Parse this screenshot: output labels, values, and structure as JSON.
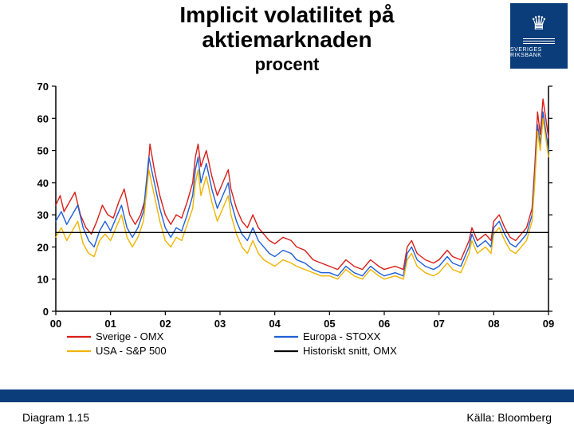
{
  "title": {
    "main": "Implicit volatilitet på\naktiemarknaden",
    "sub": "procent",
    "main_fontsize": 28,
    "sub_fontsize": 22
  },
  "logo": {
    "bg": "#0b3d7a",
    "text": "SVERIGES RIKSBANK"
  },
  "chart": {
    "type": "line",
    "background_color": "#ffffff",
    "ylim": [
      0,
      70
    ],
    "ytick_step": 10,
    "xlim": [
      2000,
      2009
    ],
    "xtick_step": 1,
    "x_labels": [
      "00",
      "01",
      "02",
      "03",
      "04",
      "05",
      "06",
      "07",
      "08",
      "09"
    ],
    "y_labels": [
      "0",
      "10",
      "20",
      "30",
      "40",
      "50",
      "60",
      "70"
    ],
    "axis_color": "#000000",
    "tick_fontsize": 13,
    "line_width": 1.4,
    "grid": false,
    "series": [
      {
        "name": "Sverige - OMX",
        "color": "#d91e18",
        "points": [
          [
            2000.0,
            33
          ],
          [
            2000.08,
            36
          ],
          [
            2000.15,
            31
          ],
          [
            2000.25,
            34
          ],
          [
            2000.35,
            37
          ],
          [
            2000.45,
            30
          ],
          [
            2000.55,
            26
          ],
          [
            2000.65,
            24
          ],
          [
            2000.75,
            28
          ],
          [
            2000.85,
            33
          ],
          [
            2000.95,
            30
          ],
          [
            2001.05,
            29
          ],
          [
            2001.15,
            34
          ],
          [
            2001.25,
            38
          ],
          [
            2001.35,
            30
          ],
          [
            2001.45,
            27
          ],
          [
            2001.55,
            30
          ],
          [
            2001.65,
            36
          ],
          [
            2001.72,
            52
          ],
          [
            2001.8,
            44
          ],
          [
            2001.9,
            36
          ],
          [
            2002.0,
            30
          ],
          [
            2002.1,
            27
          ],
          [
            2002.2,
            30
          ],
          [
            2002.3,
            29
          ],
          [
            2002.4,
            34
          ],
          [
            2002.5,
            40
          ],
          [
            2002.55,
            48
          ],
          [
            2002.6,
            52
          ],
          [
            2002.65,
            45
          ],
          [
            2002.75,
            50
          ],
          [
            2002.85,
            42
          ],
          [
            2002.95,
            36
          ],
          [
            2003.05,
            40
          ],
          [
            2003.15,
            44
          ],
          [
            2003.2,
            38
          ],
          [
            2003.3,
            32
          ],
          [
            2003.4,
            28
          ],
          [
            2003.5,
            26
          ],
          [
            2003.6,
            30
          ],
          [
            2003.7,
            26
          ],
          [
            2003.8,
            24
          ],
          [
            2003.9,
            22
          ],
          [
            2004.0,
            21
          ],
          [
            2004.15,
            23
          ],
          [
            2004.3,
            22
          ],
          [
            2004.4,
            20
          ],
          [
            2004.55,
            19
          ],
          [
            2004.7,
            16
          ],
          [
            2004.85,
            15
          ],
          [
            2005.0,
            14
          ],
          [
            2005.15,
            13
          ],
          [
            2005.3,
            16
          ],
          [
            2005.45,
            14
          ],
          [
            2005.6,
            13
          ],
          [
            2005.75,
            16
          ],
          [
            2005.9,
            14
          ],
          [
            2006.0,
            13
          ],
          [
            2006.2,
            14
          ],
          [
            2006.35,
            13
          ],
          [
            2006.42,
            20
          ],
          [
            2006.5,
            22
          ],
          [
            2006.6,
            18
          ],
          [
            2006.75,
            16
          ],
          [
            2006.9,
            15
          ],
          [
            2007.0,
            16
          ],
          [
            2007.15,
            19
          ],
          [
            2007.25,
            17
          ],
          [
            2007.4,
            16
          ],
          [
            2007.55,
            22
          ],
          [
            2007.6,
            26
          ],
          [
            2007.7,
            22
          ],
          [
            2007.85,
            24
          ],
          [
            2007.95,
            22
          ],
          [
            2008.0,
            28
          ],
          [
            2008.1,
            30
          ],
          [
            2008.2,
            26
          ],
          [
            2008.3,
            23
          ],
          [
            2008.4,
            22
          ],
          [
            2008.5,
            24
          ],
          [
            2008.6,
            26
          ],
          [
            2008.7,
            32
          ],
          [
            2008.75,
            45
          ],
          [
            2008.8,
            62
          ],
          [
            2008.85,
            55
          ],
          [
            2008.9,
            66
          ],
          [
            2008.95,
            60
          ],
          [
            2009.0,
            54
          ]
        ]
      },
      {
        "name": "Europa - STOXX",
        "color": "#1f5fd6",
        "points": [
          [
            2000.0,
            28
          ],
          [
            2000.1,
            31
          ],
          [
            2000.2,
            27
          ],
          [
            2000.3,
            30
          ],
          [
            2000.4,
            33
          ],
          [
            2000.5,
            26
          ],
          [
            2000.6,
            22
          ],
          [
            2000.7,
            20
          ],
          [
            2000.8,
            25
          ],
          [
            2000.9,
            28
          ],
          [
            2001.0,
            25
          ],
          [
            2001.1,
            29
          ],
          [
            2001.2,
            33
          ],
          [
            2001.3,
            26
          ],
          [
            2001.4,
            23
          ],
          [
            2001.5,
            26
          ],
          [
            2001.6,
            31
          ],
          [
            2001.7,
            48
          ],
          [
            2001.8,
            40
          ],
          [
            2001.9,
            32
          ],
          [
            2002.0,
            26
          ],
          [
            2002.1,
            23
          ],
          [
            2002.2,
            26
          ],
          [
            2002.3,
            25
          ],
          [
            2002.4,
            30
          ],
          [
            2002.5,
            36
          ],
          [
            2002.55,
            44
          ],
          [
            2002.6,
            48
          ],
          [
            2002.65,
            40
          ],
          [
            2002.75,
            46
          ],
          [
            2002.85,
            38
          ],
          [
            2002.95,
            32
          ],
          [
            2003.05,
            36
          ],
          [
            2003.15,
            40
          ],
          [
            2003.2,
            34
          ],
          [
            2003.3,
            28
          ],
          [
            2003.4,
            24
          ],
          [
            2003.5,
            22
          ],
          [
            2003.6,
            26
          ],
          [
            2003.7,
            22
          ],
          [
            2003.8,
            20
          ],
          [
            2003.9,
            18
          ],
          [
            2004.0,
            17
          ],
          [
            2004.15,
            19
          ],
          [
            2004.3,
            18
          ],
          [
            2004.4,
            16
          ],
          [
            2004.55,
            15
          ],
          [
            2004.7,
            13
          ],
          [
            2004.85,
            12
          ],
          [
            2005.0,
            12
          ],
          [
            2005.15,
            11
          ],
          [
            2005.3,
            14
          ],
          [
            2005.45,
            12
          ],
          [
            2005.6,
            11
          ],
          [
            2005.75,
            14
          ],
          [
            2005.9,
            12
          ],
          [
            2006.0,
            11
          ],
          [
            2006.2,
            12
          ],
          [
            2006.35,
            11
          ],
          [
            2006.42,
            18
          ],
          [
            2006.5,
            20
          ],
          [
            2006.6,
            16
          ],
          [
            2006.75,
            14
          ],
          [
            2006.9,
            13
          ],
          [
            2007.0,
            14
          ],
          [
            2007.15,
            17
          ],
          [
            2007.25,
            15
          ],
          [
            2007.4,
            14
          ],
          [
            2007.55,
            20
          ],
          [
            2007.6,
            24
          ],
          [
            2007.7,
            20
          ],
          [
            2007.85,
            22
          ],
          [
            2007.95,
            20
          ],
          [
            2008.0,
            26
          ],
          [
            2008.1,
            28
          ],
          [
            2008.2,
            24
          ],
          [
            2008.3,
            21
          ],
          [
            2008.4,
            20
          ],
          [
            2008.5,
            22
          ],
          [
            2008.6,
            24
          ],
          [
            2008.7,
            30
          ],
          [
            2008.75,
            42
          ],
          [
            2008.8,
            58
          ],
          [
            2008.85,
            52
          ],
          [
            2008.9,
            62
          ],
          [
            2008.95,
            56
          ],
          [
            2009.0,
            50
          ]
        ]
      },
      {
        "name": "USA - S&P 500",
        "color": "#f0b400",
        "points": [
          [
            2000.0,
            23
          ],
          [
            2000.1,
            26
          ],
          [
            2000.2,
            22
          ],
          [
            2000.3,
            25
          ],
          [
            2000.4,
            28
          ],
          [
            2000.5,
            21
          ],
          [
            2000.6,
            18
          ],
          [
            2000.7,
            17
          ],
          [
            2000.8,
            22
          ],
          [
            2000.9,
            24
          ],
          [
            2001.0,
            22
          ],
          [
            2001.1,
            26
          ],
          [
            2001.2,
            30
          ],
          [
            2001.3,
            23
          ],
          [
            2001.4,
            20
          ],
          [
            2001.5,
            23
          ],
          [
            2001.6,
            28
          ],
          [
            2001.7,
            44
          ],
          [
            2001.8,
            36
          ],
          [
            2001.9,
            28
          ],
          [
            2002.0,
            22
          ],
          [
            2002.1,
            20
          ],
          [
            2002.2,
            23
          ],
          [
            2002.3,
            22
          ],
          [
            2002.4,
            27
          ],
          [
            2002.5,
            32
          ],
          [
            2002.55,
            40
          ],
          [
            2002.6,
            44
          ],
          [
            2002.65,
            36
          ],
          [
            2002.75,
            42
          ],
          [
            2002.85,
            34
          ],
          [
            2002.95,
            28
          ],
          [
            2003.05,
            32
          ],
          [
            2003.15,
            36
          ],
          [
            2003.2,
            30
          ],
          [
            2003.3,
            24
          ],
          [
            2003.4,
            20
          ],
          [
            2003.5,
            18
          ],
          [
            2003.6,
            22
          ],
          [
            2003.7,
            18
          ],
          [
            2003.8,
            16
          ],
          [
            2003.9,
            15
          ],
          [
            2004.0,
            14
          ],
          [
            2004.15,
            16
          ],
          [
            2004.3,
            15
          ],
          [
            2004.4,
            14
          ],
          [
            2004.55,
            13
          ],
          [
            2004.7,
            12
          ],
          [
            2004.85,
            11
          ],
          [
            2005.0,
            11
          ],
          [
            2005.15,
            10
          ],
          [
            2005.3,
            13
          ],
          [
            2005.45,
            11
          ],
          [
            2005.6,
            10
          ],
          [
            2005.75,
            13
          ],
          [
            2005.9,
            11
          ],
          [
            2006.0,
            10
          ],
          [
            2006.2,
            11
          ],
          [
            2006.35,
            10
          ],
          [
            2006.42,
            16
          ],
          [
            2006.5,
            18
          ],
          [
            2006.6,
            14
          ],
          [
            2006.75,
            12
          ],
          [
            2006.9,
            11
          ],
          [
            2007.0,
            12
          ],
          [
            2007.15,
            15
          ],
          [
            2007.25,
            13
          ],
          [
            2007.4,
            12
          ],
          [
            2007.55,
            18
          ],
          [
            2007.6,
            22
          ],
          [
            2007.7,
            18
          ],
          [
            2007.85,
            20
          ],
          [
            2007.95,
            18
          ],
          [
            2008.0,
            24
          ],
          [
            2008.1,
            26
          ],
          [
            2008.2,
            22
          ],
          [
            2008.3,
            19
          ],
          [
            2008.4,
            18
          ],
          [
            2008.5,
            20
          ],
          [
            2008.6,
            22
          ],
          [
            2008.7,
            28
          ],
          [
            2008.75,
            40
          ],
          [
            2008.8,
            56
          ],
          [
            2008.85,
            50
          ],
          [
            2008.9,
            60
          ],
          [
            2008.95,
            54
          ],
          [
            2009.0,
            48
          ]
        ]
      },
      {
        "name": "Historiskt snitt, OMX",
        "color": "#000000",
        "points": [
          [
            2000.0,
            24.5
          ],
          [
            2009.0,
            24.5
          ]
        ]
      }
    ],
    "legend": {
      "position": "bottom",
      "items": [
        {
          "label": "Sverige - OMX",
          "color": "#d91e18"
        },
        {
          "label": "Europa - STOXX",
          "color": "#1f5fd6"
        },
        {
          "label": "USA - S&P 500",
          "color": "#f0b400"
        },
        {
          "label": "Historiskt snitt, OMX",
          "color": "#000000"
        }
      ],
      "fontsize": 13
    }
  },
  "bottom_bar_color": "#0b3d7a",
  "footer": {
    "left": "Diagram 1.15",
    "right": "Källa: Bloomberg"
  }
}
